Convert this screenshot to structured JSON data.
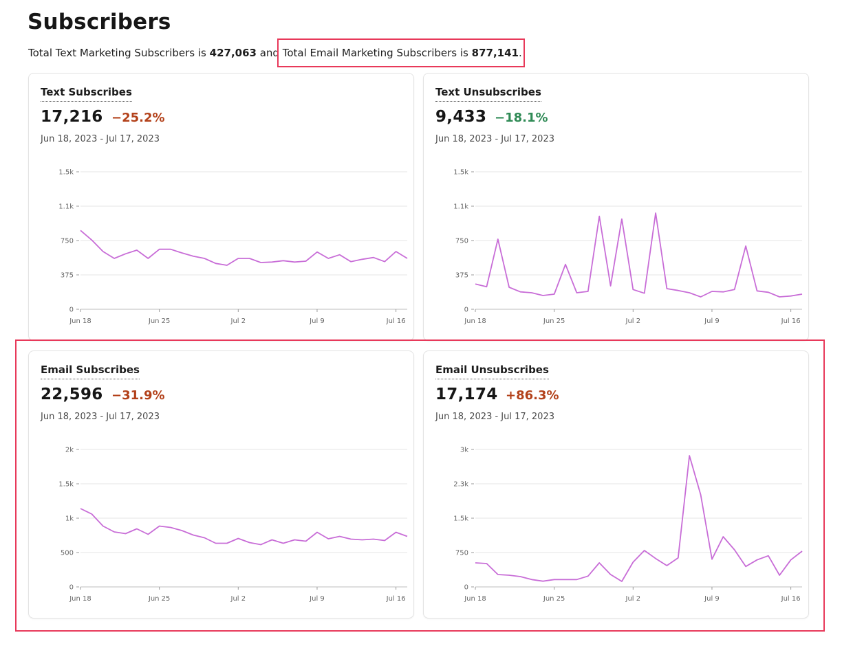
{
  "page": {
    "title": "Subscribers",
    "summary": {
      "text_prefix": "Total Text Marketing Subscribers is ",
      "text_total": "427,063",
      "joiner": " and ",
      "email_prefix": "Total Email Marketing Subscribers is ",
      "email_total": "877,141",
      "suffix": "."
    }
  },
  "colors": {
    "line": "#c86dd7",
    "negative": "#b3411a",
    "positive": "#2f8a55",
    "highlight": "#e8395a"
  },
  "cards": [
    {
      "title": "Text Subscribes",
      "value": "17,216",
      "change": "−25.2%",
      "date_range": "Jun 18, 2023 - Jul 17, 2023"
    },
    {
      "title": "Text Unsubscribes",
      "value": "9,433",
      "change": "−18.1%",
      "date_range": "Jun 18, 2023 - Jul 17, 2023"
    },
    {
      "title": "Email Subscribes",
      "value": "22,596",
      "change": "−31.9%",
      "date_range": "Jun 18, 2023 - Jul 17, 2023"
    },
    {
      "title": "Email Unsubscribes",
      "value": "17,174",
      "change": "+86.3%",
      "date_range": "Jun 18, 2023 - Jul 17, 2023"
    }
  ],
  "chart_data": [
    {
      "type": "line",
      "title": "Text Subscribes",
      "x_ticks": [
        "Jun 18",
        "Jun 25",
        "Jul 2",
        "Jul 9",
        "Jul 16"
      ],
      "y_ticks": [
        "0",
        "375",
        "750",
        "1.1k",
        "1.5k"
      ],
      "ylim": [
        0,
        1500
      ],
      "grid": true,
      "x": [
        "Jun 18",
        "Jun 19",
        "Jun 20",
        "Jun 21",
        "Jun 22",
        "Jun 23",
        "Jun 24",
        "Jun 25",
        "Jun 26",
        "Jun 27",
        "Jun 28",
        "Jun 29",
        "Jun 30",
        "Jul 1",
        "Jul 2",
        "Jul 3",
        "Jul 4",
        "Jul 5",
        "Jul 6",
        "Jul 7",
        "Jul 8",
        "Jul 9",
        "Jul 10",
        "Jul 11",
        "Jul 12",
        "Jul 13",
        "Jul 14",
        "Jul 15",
        "Jul 16",
        "Jul 17"
      ],
      "values": [
        860,
        755,
        630,
        555,
        605,
        645,
        555,
        655,
        655,
        615,
        580,
        555,
        500,
        480,
        555,
        555,
        510,
        515,
        530,
        515,
        525,
        625,
        555,
        595,
        520,
        545,
        565,
        520,
        630,
        555
      ]
    },
    {
      "type": "line",
      "title": "Text Unsubscribes",
      "x_ticks": [
        "Jun 18",
        "Jun 25",
        "Jul 2",
        "Jul 9",
        "Jul 16"
      ],
      "y_ticks": [
        "0",
        "375",
        "750",
        "1.1k",
        "1.5k"
      ],
      "ylim": [
        0,
        1500
      ],
      "grid": true,
      "x": [
        "Jun 18",
        "Jun 19",
        "Jun 20",
        "Jun 21",
        "Jun 22",
        "Jun 23",
        "Jun 24",
        "Jun 25",
        "Jun 26",
        "Jun 27",
        "Jun 28",
        "Jun 29",
        "Jun 30",
        "Jul 1",
        "Jul 2",
        "Jul 3",
        "Jul 4",
        "Jul 5",
        "Jul 6",
        "Jul 7",
        "Jul 8",
        "Jul 9",
        "Jul 10",
        "Jul 11",
        "Jul 12",
        "Jul 13",
        "Jul 14",
        "Jul 15",
        "Jul 16",
        "Jul 17"
      ],
      "values": [
        275,
        245,
        765,
        240,
        190,
        180,
        150,
        165,
        490,
        180,
        195,
        1015,
        255,
        985,
        215,
        175,
        1050,
        225,
        205,
        180,
        135,
        195,
        190,
        215,
        690,
        200,
        185,
        135,
        145,
        165
      ]
    },
    {
      "type": "line",
      "title": "Email Subscribes",
      "x_ticks": [
        "Jun 18",
        "Jun 25",
        "Jul 2",
        "Jul 9",
        "Jul 16"
      ],
      "y_ticks": [
        "0",
        "500",
        "1k",
        "1.5k",
        "2k"
      ],
      "ylim": [
        0,
        2000
      ],
      "grid": true,
      "x": [
        "Jun 18",
        "Jun 19",
        "Jun 20",
        "Jun 21",
        "Jun 22",
        "Jun 23",
        "Jun 24",
        "Jun 25",
        "Jun 26",
        "Jun 27",
        "Jun 28",
        "Jun 29",
        "Jun 30",
        "Jul 1",
        "Jul 2",
        "Jul 3",
        "Jul 4",
        "Jul 5",
        "Jul 6",
        "Jul 7",
        "Jul 8",
        "Jul 9",
        "Jul 10",
        "Jul 11",
        "Jul 12",
        "Jul 13",
        "Jul 14",
        "Jul 15",
        "Jul 16",
        "Jul 17"
      ],
      "values": [
        1140,
        1060,
        885,
        800,
        775,
        845,
        765,
        885,
        865,
        820,
        755,
        715,
        635,
        635,
        705,
        645,
        615,
        685,
        635,
        685,
        665,
        795,
        700,
        735,
        695,
        685,
        695,
        675,
        795,
        735
      ]
    },
    {
      "type": "line",
      "title": "Email Unsubscribes",
      "x_ticks": [
        "Jun 18",
        "Jun 25",
        "Jul 2",
        "Jul 9",
        "Jul 16"
      ],
      "y_ticks": [
        "0",
        "750",
        "1.5k",
        "2.3k",
        "3k"
      ],
      "ylim": [
        0,
        3000
      ],
      "grid": true,
      "x": [
        "Jun 18",
        "Jun 19",
        "Jun 20",
        "Jun 21",
        "Jun 22",
        "Jun 23",
        "Jun 24",
        "Jun 25",
        "Jun 26",
        "Jun 27",
        "Jun 28",
        "Jun 29",
        "Jun 30",
        "Jul 1",
        "Jul 2",
        "Jul 3",
        "Jul 4",
        "Jul 5",
        "Jul 6",
        "Jul 7",
        "Jul 8",
        "Jul 9",
        "Jul 10",
        "Jul 11",
        "Jul 12",
        "Jul 13",
        "Jul 14",
        "Jul 15",
        "Jul 16",
        "Jul 17"
      ],
      "values": [
        525,
        510,
        270,
        255,
        225,
        160,
        125,
        160,
        160,
        160,
        235,
        525,
        270,
        120,
        540,
        795,
        620,
        465,
        635,
        2865,
        2010,
        605,
        1095,
        810,
        445,
        590,
        680,
        255,
        590,
        780
      ]
    }
  ]
}
